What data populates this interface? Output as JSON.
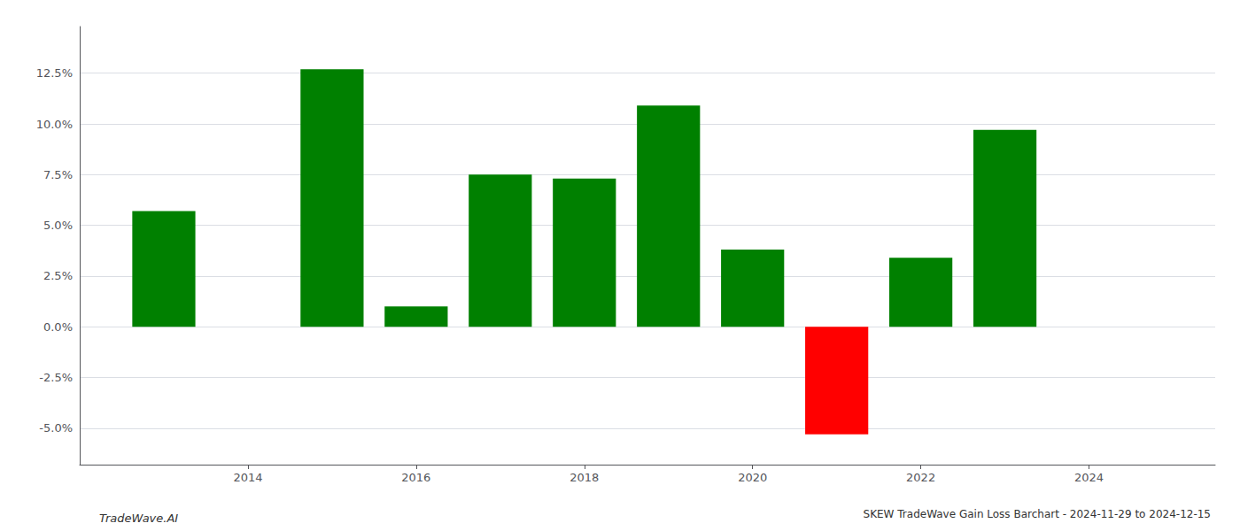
{
  "chart_data": {
    "type": "bar",
    "title": "SKEW TradeWave Gain Loss Barchart - 2024-11-29 to 2024-12-15",
    "annotations": [
      "TradeWave.AI"
    ],
    "x": [
      2013,
      2015,
      2016,
      2017,
      2018,
      2019,
      2020,
      2021,
      2022,
      2023
    ],
    "values": [
      0.057,
      0.127,
      0.01,
      0.075,
      0.073,
      0.109,
      0.038,
      -0.053,
      0.034,
      0.097
    ],
    "colors": [
      "#008000",
      "#008000",
      "#008000",
      "#008000",
      "#008000",
      "#008000",
      "#008000",
      "#ff0000",
      "#008000",
      "#008000"
    ],
    "xlim": [
      2012.0,
      2025.5
    ],
    "ylim": [
      -0.068,
      0.148
    ],
    "xticks": [
      2014,
      2016,
      2018,
      2020,
      2022,
      2024
    ],
    "yticks": [
      {
        "value": -0.05,
        "label": "-5.0%"
      },
      {
        "value": -0.025,
        "label": "-2.5%"
      },
      {
        "value": 0,
        "label": "0.0%"
      },
      {
        "value": 0.025,
        "label": "2.5%"
      },
      {
        "value": 0.05,
        "label": "5.0%"
      },
      {
        "value": 0.075,
        "label": "7.5%"
      },
      {
        "value": 0.1,
        "label": "10.0%"
      },
      {
        "value": 0.125,
        "label": "12.5%"
      }
    ],
    "grid": true
  }
}
